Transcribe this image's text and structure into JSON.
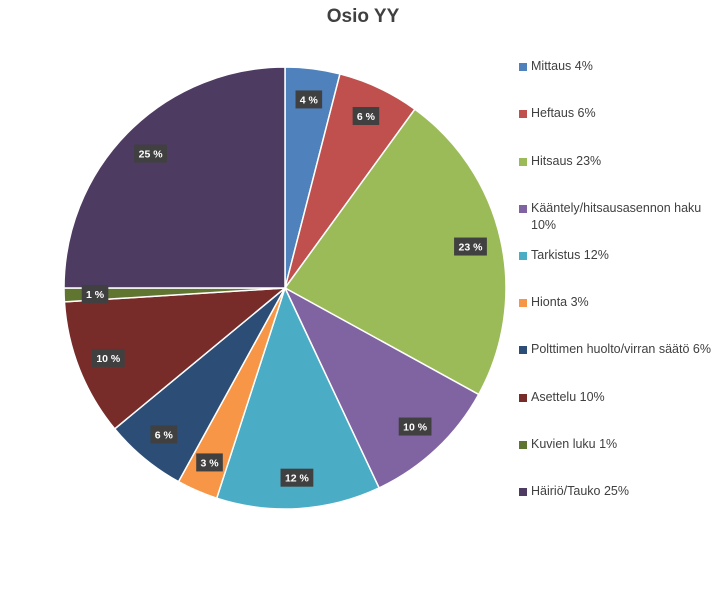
{
  "chart_data": {
    "type": "pie",
    "title": "Osio YY",
    "legend_position": "right",
    "slices": [
      {
        "label": "Mittaus 4%",
        "value": 4,
        "data_label": "4 %",
        "color": "#4F81BD"
      },
      {
        "label": "Heftaus 6%",
        "value": 6,
        "data_label": "6 %",
        "color": "#C0504D"
      },
      {
        "label": "Hitsaus 23%",
        "value": 23,
        "data_label": "23 %",
        "color": "#9BBB59"
      },
      {
        "label": "Kääntely/hitsausasennon haku 10%",
        "value": 10,
        "data_label": "10 %",
        "color": "#8064A2"
      },
      {
        "label": "Tarkistus 12%",
        "value": 12,
        "data_label": "12 %",
        "color": "#4BACC6"
      },
      {
        "label": "Hionta 3%",
        "value": 3,
        "data_label": "3 %",
        "color": "#F79646"
      },
      {
        "label": "Polttimen huolto/virran säätö 6%",
        "value": 6,
        "data_label": "6 %",
        "color": "#2C4D75"
      },
      {
        "label": "Asettelu 10%",
        "value": 10,
        "data_label": "10 %",
        "color": "#772C2A"
      },
      {
        "label": "Kuvien luku 1%",
        "value": 1,
        "data_label": "1 %",
        "color": "#5F7530"
      },
      {
        "label": "Häiriö/Tauko 25%",
        "value": 25,
        "data_label": "25 %",
        "color": "#4D3B62"
      }
    ]
  }
}
